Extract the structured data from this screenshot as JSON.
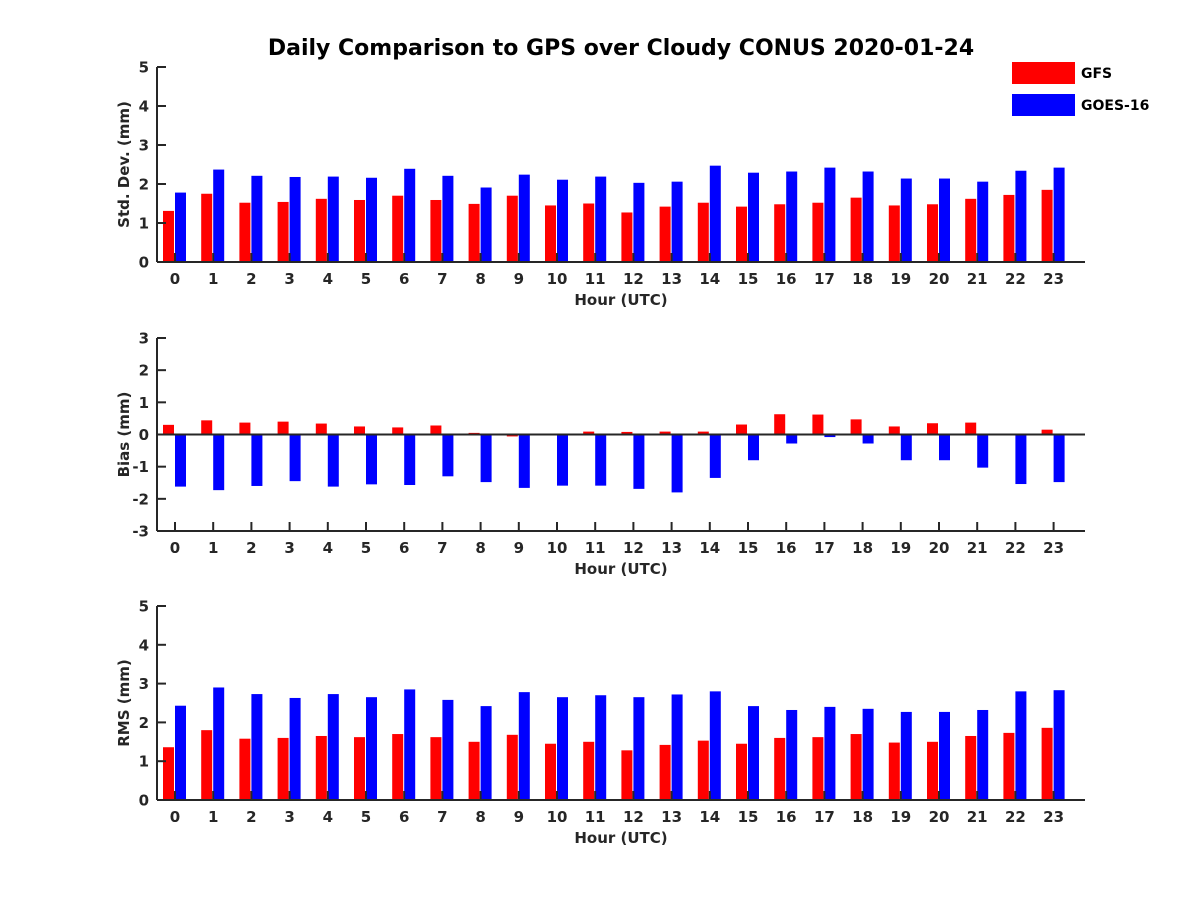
{
  "title": "Daily Comparison to GPS over Cloudy CONUS 2020-01-24",
  "legend": [
    {
      "name": "GFS",
      "color": "#ff0000"
    },
    {
      "name": "GOES-16",
      "color": "#0000ff"
    }
  ],
  "chart_data": [
    {
      "type": "bar",
      "xlabel": "Hour (UTC)",
      "ylabel": "Std. Dev. (mm)",
      "ylim": [
        0,
        5
      ],
      "yticks": [
        "0",
        "1",
        "2",
        "3",
        "4",
        "5"
      ],
      "categories": [
        "0",
        "1",
        "2",
        "3",
        "4",
        "5",
        "6",
        "7",
        "8",
        "9",
        "10",
        "11",
        "12",
        "13",
        "14",
        "15",
        "16",
        "17",
        "18",
        "19",
        "20",
        "21",
        "22",
        "23"
      ],
      "series": [
        {
          "name": "GFS",
          "color": "#ff0000",
          "values": [
            1.31,
            1.75,
            1.52,
            1.54,
            1.62,
            1.59,
            1.7,
            1.59,
            1.49,
            1.7,
            1.45,
            1.5,
            1.27,
            1.42,
            1.52,
            1.42,
            1.48,
            1.52,
            1.65,
            1.45,
            1.48,
            1.62,
            1.72,
            1.85
          ]
        },
        {
          "name": "GOES-16",
          "color": "#0000ff",
          "values": [
            1.78,
            2.37,
            2.21,
            2.18,
            2.19,
            2.16,
            2.39,
            2.21,
            1.91,
            2.24,
            2.11,
            2.19,
            2.03,
            2.06,
            2.47,
            2.29,
            2.32,
            2.42,
            2.32,
            2.14,
            2.14,
            2.06,
            2.34,
            2.42
          ]
        }
      ]
    },
    {
      "type": "bar",
      "xlabel": "Hour (UTC)",
      "ylabel": "Bias (mm)",
      "ylim": [
        -3,
        3
      ],
      "yticks": [
        "-3",
        "-2",
        "-1",
        "0",
        "1",
        "2",
        "3"
      ],
      "categories": [
        "0",
        "1",
        "2",
        "3",
        "4",
        "5",
        "6",
        "7",
        "8",
        "9",
        "10",
        "11",
        "12",
        "13",
        "14",
        "15",
        "16",
        "17",
        "18",
        "19",
        "20",
        "21",
        "22",
        "23"
      ],
      "series": [
        {
          "name": "GFS",
          "color": "#ff0000",
          "values": [
            0.3,
            0.44,
            0.37,
            0.4,
            0.34,
            0.25,
            0.22,
            0.28,
            0.05,
            -0.06,
            0.0,
            0.09,
            0.08,
            0.09,
            0.09,
            0.31,
            0.63,
            0.62,
            0.47,
            0.25,
            0.35,
            0.37,
            -0.03,
            0.15
          ]
        },
        {
          "name": "GOES-16",
          "color": "#0000ff",
          "values": [
            -1.62,
            -1.73,
            -1.6,
            -1.45,
            -1.62,
            -1.55,
            -1.57,
            -1.3,
            -1.48,
            -1.66,
            -1.59,
            -1.59,
            -1.69,
            -1.8,
            -1.35,
            -0.8,
            -0.28,
            -0.08,
            -0.28,
            -0.8,
            -0.8,
            -1.03,
            -1.54,
            -1.48
          ]
        }
      ]
    },
    {
      "type": "bar",
      "xlabel": "Hour (UTC)",
      "ylabel": "RMS (mm)",
      "ylim": [
        0,
        5
      ],
      "yticks": [
        "0",
        "1",
        "2",
        "3",
        "4",
        "5"
      ],
      "categories": [
        "0",
        "1",
        "2",
        "3",
        "4",
        "5",
        "6",
        "7",
        "8",
        "9",
        "10",
        "11",
        "12",
        "13",
        "14",
        "15",
        "16",
        "17",
        "18",
        "19",
        "20",
        "21",
        "22",
        "23"
      ],
      "series": [
        {
          "name": "GFS",
          "color": "#ff0000",
          "values": [
            1.36,
            1.8,
            1.58,
            1.6,
            1.65,
            1.62,
            1.7,
            1.62,
            1.5,
            1.68,
            1.45,
            1.5,
            1.28,
            1.42,
            1.53,
            1.45,
            1.6,
            1.62,
            1.7,
            1.48,
            1.5,
            1.65,
            1.73,
            1.86
          ]
        },
        {
          "name": "GOES-16",
          "color": "#0000ff",
          "values": [
            2.43,
            2.9,
            2.73,
            2.63,
            2.73,
            2.65,
            2.85,
            2.58,
            2.42,
            2.78,
            2.65,
            2.7,
            2.65,
            2.72,
            2.8,
            2.42,
            2.32,
            2.4,
            2.35,
            2.27,
            2.27,
            2.32,
            2.8,
            2.83
          ]
        }
      ]
    }
  ]
}
